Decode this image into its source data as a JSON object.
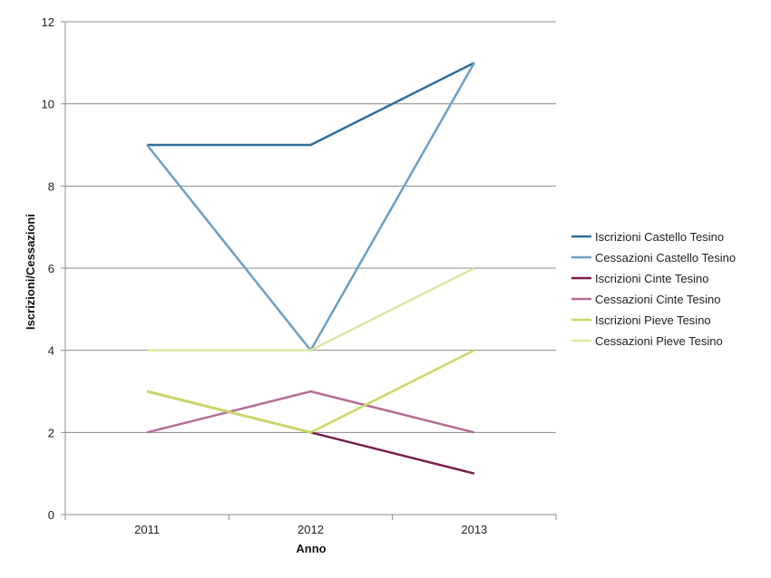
{
  "chart_data": {
    "type": "line",
    "title": "",
    "xlabel": "Anno",
    "ylabel": "Iscrizioni/Cessazioni",
    "categories": [
      "2011",
      "2012",
      "2013"
    ],
    "ylim": [
      0,
      12
    ],
    "yticks": [
      0,
      2,
      4,
      6,
      8,
      10,
      12
    ],
    "grid": "horizontal",
    "legend_position": "right",
    "series": [
      {
        "name": "Iscrizioni Castello Tesino",
        "color": "#2f6e9b",
        "values": [
          9,
          9,
          11
        ]
      },
      {
        "name": "Cessazioni Castello Tesino",
        "color": "#6f9ec4",
        "values": [
          9,
          4,
          11
        ]
      },
      {
        "name": "Iscrizioni Cinte Tesino",
        "color": "#7b1f4c",
        "values": [
          3,
          2,
          1
        ]
      },
      {
        "name": "Cessazioni Cinte Tesino",
        "color": "#b56b93",
        "values": [
          2,
          3,
          2
        ]
      },
      {
        "name": "Iscrizioni Pieve Tesino",
        "color": "#c9d95e",
        "values": [
          3,
          2,
          4
        ]
      },
      {
        "name": "Cessazioni Pieve Tesino",
        "color": "#dbe6a2",
        "values": [
          4,
          4,
          6
        ]
      }
    ]
  }
}
